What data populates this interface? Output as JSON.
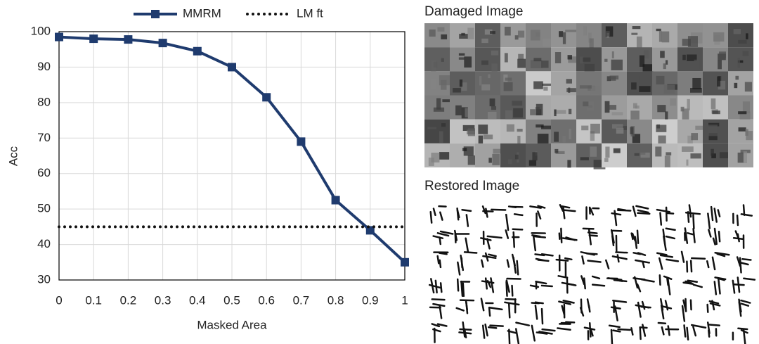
{
  "chart_data": {
    "type": "line",
    "x": [
      0,
      0.1,
      0.2,
      0.3,
      0.4,
      0.5,
      0.6,
      0.7,
      0.8,
      0.9,
      1
    ],
    "series": [
      {
        "name": "MMRM",
        "color": "#1f3b6e",
        "style": "solid-square",
        "values": [
          98.5,
          98,
          97.8,
          96.8,
          94.5,
          90,
          81.5,
          69,
          52.5,
          44,
          35
        ]
      },
      {
        "name": "LM ft",
        "color": "#111111",
        "style": "dotted",
        "values": [
          45,
          45,
          45,
          45,
          45,
          45,
          45,
          45,
          45,
          45,
          45
        ]
      }
    ],
    "xlabel": "Masked Area",
    "ylabel": "Acc",
    "xlim": [
      0,
      1
    ],
    "xticks": [
      0,
      0.1,
      0.2,
      0.3,
      0.4,
      0.5,
      0.6,
      0.7,
      0.8,
      0.9,
      1
    ],
    "ylim": [
      30,
      100
    ],
    "yticks": [
      30,
      40,
      50,
      60,
      70,
      80,
      90,
      100
    ],
    "grid": true,
    "legend": "top"
  },
  "images": {
    "damaged_title": "Damaged Image",
    "restored_title": "Restored Image"
  }
}
